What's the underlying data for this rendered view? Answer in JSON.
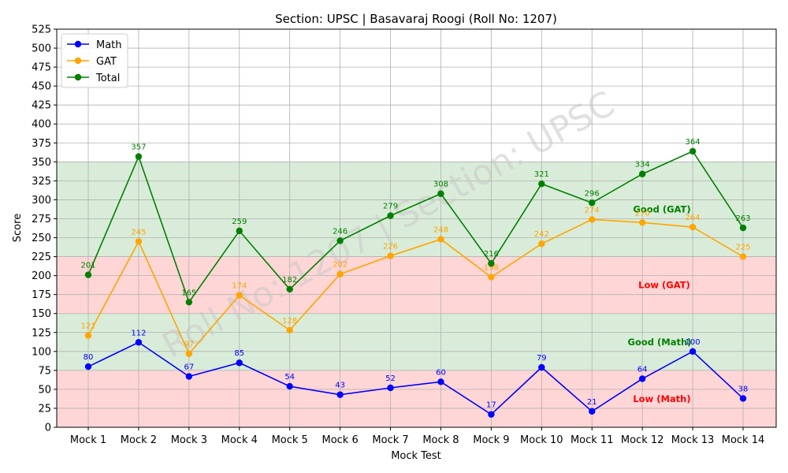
{
  "chart_data": {
    "type": "line",
    "title": "Section: UPSC | Basavaraj Roogi (Roll No: 1207)",
    "xlabel": "Mock Test",
    "ylabel": "Score",
    "ylim": [
      0,
      525
    ],
    "ytick_step": 25,
    "grid": true,
    "legend_position": "top-left",
    "watermark": "Roll No: 1207 | Section: UPSC",
    "categories": [
      "Mock 1",
      "Mock 2",
      "Mock 3",
      "Mock 4",
      "Mock 5",
      "Mock 6",
      "Mock 7",
      "Mock 8",
      "Mock 9",
      "Mock 10",
      "Mock 11",
      "Mock 12",
      "Mock 13",
      "Mock 14"
    ],
    "series": [
      {
        "name": "Math",
        "color": "#0000ff",
        "values": [
          80,
          112,
          67,
          85,
          54,
          43,
          52,
          60,
          17,
          79,
          21,
          64,
          100,
          38
        ]
      },
      {
        "name": "GAT",
        "color": "#ffa500",
        "values": [
          121,
          245,
          97,
          174,
          128,
          202,
          226,
          248,
          198,
          242,
          274,
          270,
          264,
          225
        ]
      },
      {
        "name": "Total",
        "color": "#008000",
        "values": [
          201,
          357,
          165,
          259,
          182,
          246,
          279,
          308,
          216,
          321,
          296,
          334,
          364,
          263
        ]
      }
    ],
    "bands": [
      {
        "label": "Low (Math)",
        "from": 0,
        "to": 75,
        "fill": "#ffd6d6",
        "text_color": "#ff0000"
      },
      {
        "label": "Good (Math)",
        "from": 75,
        "to": 150,
        "fill": "#d9ecd9",
        "text_color": "#008000"
      },
      {
        "label": "Low (GAT)",
        "from": 150,
        "to": 225,
        "fill": "#ffd6d6",
        "text_color": "#ff0000"
      },
      {
        "label": "Good (GAT)",
        "from": 225,
        "to": 350,
        "fill": "#d9ecd9",
        "text_color": "#008000"
      }
    ]
  }
}
